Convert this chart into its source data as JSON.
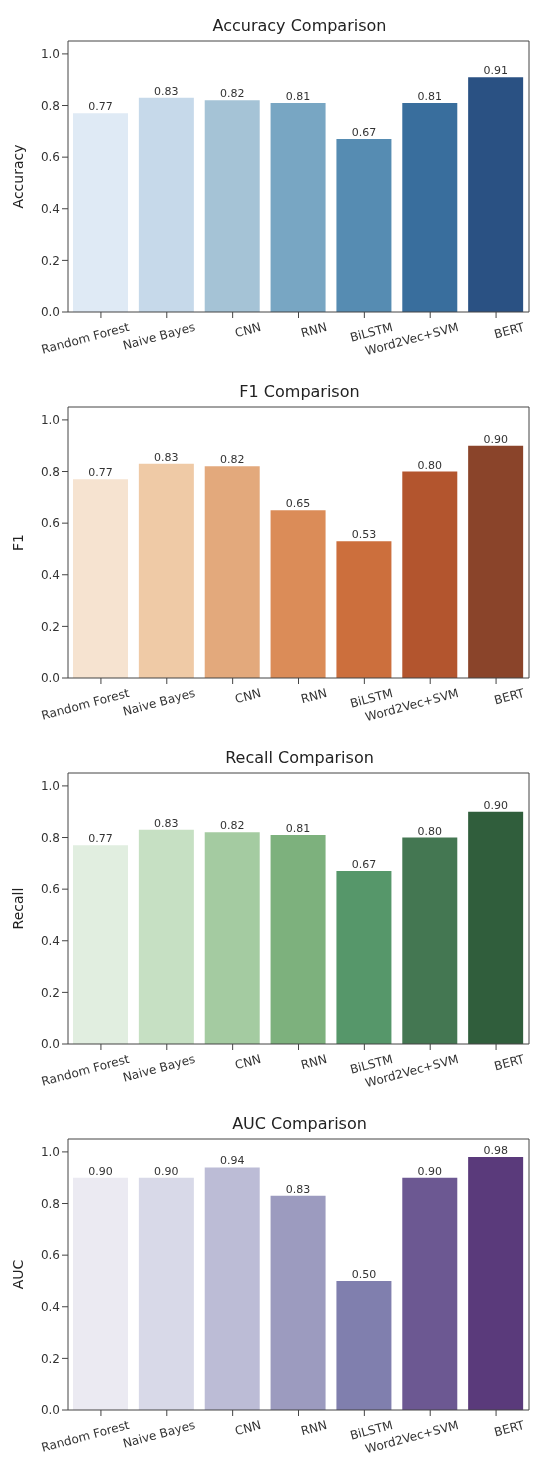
{
  "chart_data": [
    {
      "type": "bar",
      "title": "Accuracy Comparison",
      "ylabel": "Accuracy",
      "categories": [
        "Random Forest",
        "Naive Bayes",
        "CNN",
        "RNN",
        "BiLSTM",
        "Word2Vec+SVM",
        "BERT"
      ],
      "values": [
        0.77,
        0.83,
        0.82,
        0.81,
        0.67,
        0.81,
        0.91
      ],
      "value_labels": [
        "0.77",
        "0.83",
        "0.82",
        "0.81",
        "0.67",
        "0.81",
        "0.91"
      ],
      "colors": [
        "#dfeaf5",
        "#c6d9ea",
        "#a5c3d6",
        "#78a6c3",
        "#568cb2",
        "#396e9d",
        "#2a5183"
      ],
      "ylim": [
        0,
        1.05
      ],
      "yticks": [
        {
          "value": 0,
          "label": "0.0"
        },
        {
          "value": 0.2,
          "label": "0.2"
        },
        {
          "value": 0.4,
          "label": "0.4"
        },
        {
          "value": 0.6,
          "label": "0.6"
        },
        {
          "value": 0.8,
          "label": "0.8"
        },
        {
          "value": 1,
          "label": "1.0"
        }
      ],
      "grid": false
    },
    {
      "type": "bar",
      "title": "F1 Comparison",
      "ylabel": "F1",
      "categories": [
        "Random Forest",
        "Naive Bayes",
        "CNN",
        "RNN",
        "BiLSTM",
        "Word2Vec+SVM",
        "BERT"
      ],
      "values": [
        0.77,
        0.83,
        0.82,
        0.65,
        0.53,
        0.8,
        0.9
      ],
      "value_labels": [
        "0.77",
        "0.83",
        "0.82",
        "0.65",
        "0.53",
        "0.80",
        "0.90"
      ],
      "colors": [
        "#f6e3d0",
        "#efcaa6",
        "#e3a97c",
        "#db8c58",
        "#cc6f3d",
        "#b3552e",
        "#8a442a"
      ],
      "ylim": [
        0,
        1.05
      ],
      "yticks": [
        {
          "value": 0,
          "label": "0.0"
        },
        {
          "value": 0.2,
          "label": "0.2"
        },
        {
          "value": 0.4,
          "label": "0.4"
        },
        {
          "value": 0.6,
          "label": "0.6"
        },
        {
          "value": 0.8,
          "label": "0.8"
        },
        {
          "value": 1,
          "label": "1.0"
        }
      ],
      "grid": false
    },
    {
      "type": "bar",
      "title": "Recall Comparison",
      "ylabel": "Recall",
      "categories": [
        "Random Forest",
        "Naive Bayes",
        "CNN",
        "RNN",
        "BiLSTM",
        "Word2Vec+SVM",
        "BERT"
      ],
      "values": [
        0.77,
        0.83,
        0.82,
        0.81,
        0.67,
        0.8,
        0.9
      ],
      "value_labels": [
        "0.77",
        "0.83",
        "0.82",
        "0.81",
        "0.67",
        "0.80",
        "0.90"
      ],
      "colors": [
        "#e1eee0",
        "#c6e0c3",
        "#a4cba1",
        "#7db17d",
        "#56976a",
        "#447752",
        "#305e3c"
      ],
      "ylim": [
        0,
        1.05
      ],
      "yticks": [
        {
          "value": 0,
          "label": "0.0"
        },
        {
          "value": 0.2,
          "label": "0.2"
        },
        {
          "value": 0.4,
          "label": "0.4"
        },
        {
          "value": 0.6,
          "label": "0.6"
        },
        {
          "value": 0.8,
          "label": "0.8"
        },
        {
          "value": 1,
          "label": "1.0"
        }
      ],
      "grid": false
    },
    {
      "type": "bar",
      "title": "AUC Comparison",
      "ylabel": "AUC",
      "categories": [
        "Random Forest",
        "Naive Bayes",
        "CNN",
        "RNN",
        "BiLSTM",
        "Word2Vec+SVM",
        "BERT"
      ],
      "values": [
        0.9,
        0.9,
        0.94,
        0.83,
        0.5,
        0.9,
        0.98
      ],
      "value_labels": [
        "0.90",
        "0.90",
        "0.94",
        "0.83",
        "0.50",
        "0.90",
        "0.98"
      ],
      "colors": [
        "#ebeaf2",
        "#d8d9e8",
        "#bcbcd6",
        "#9c9bbf",
        "#807fae",
        "#6c5892",
        "#5a3a7b"
      ],
      "ylim": [
        0,
        1.05
      ],
      "yticks": [
        {
          "value": 0,
          "label": "0.0"
        },
        {
          "value": 0.2,
          "label": "0.2"
        },
        {
          "value": 0.4,
          "label": "0.4"
        },
        {
          "value": 0.6,
          "label": "0.6"
        },
        {
          "value": 0.8,
          "label": "0.8"
        },
        {
          "value": 1,
          "label": "1.0"
        }
      ],
      "grid": false
    }
  ]
}
